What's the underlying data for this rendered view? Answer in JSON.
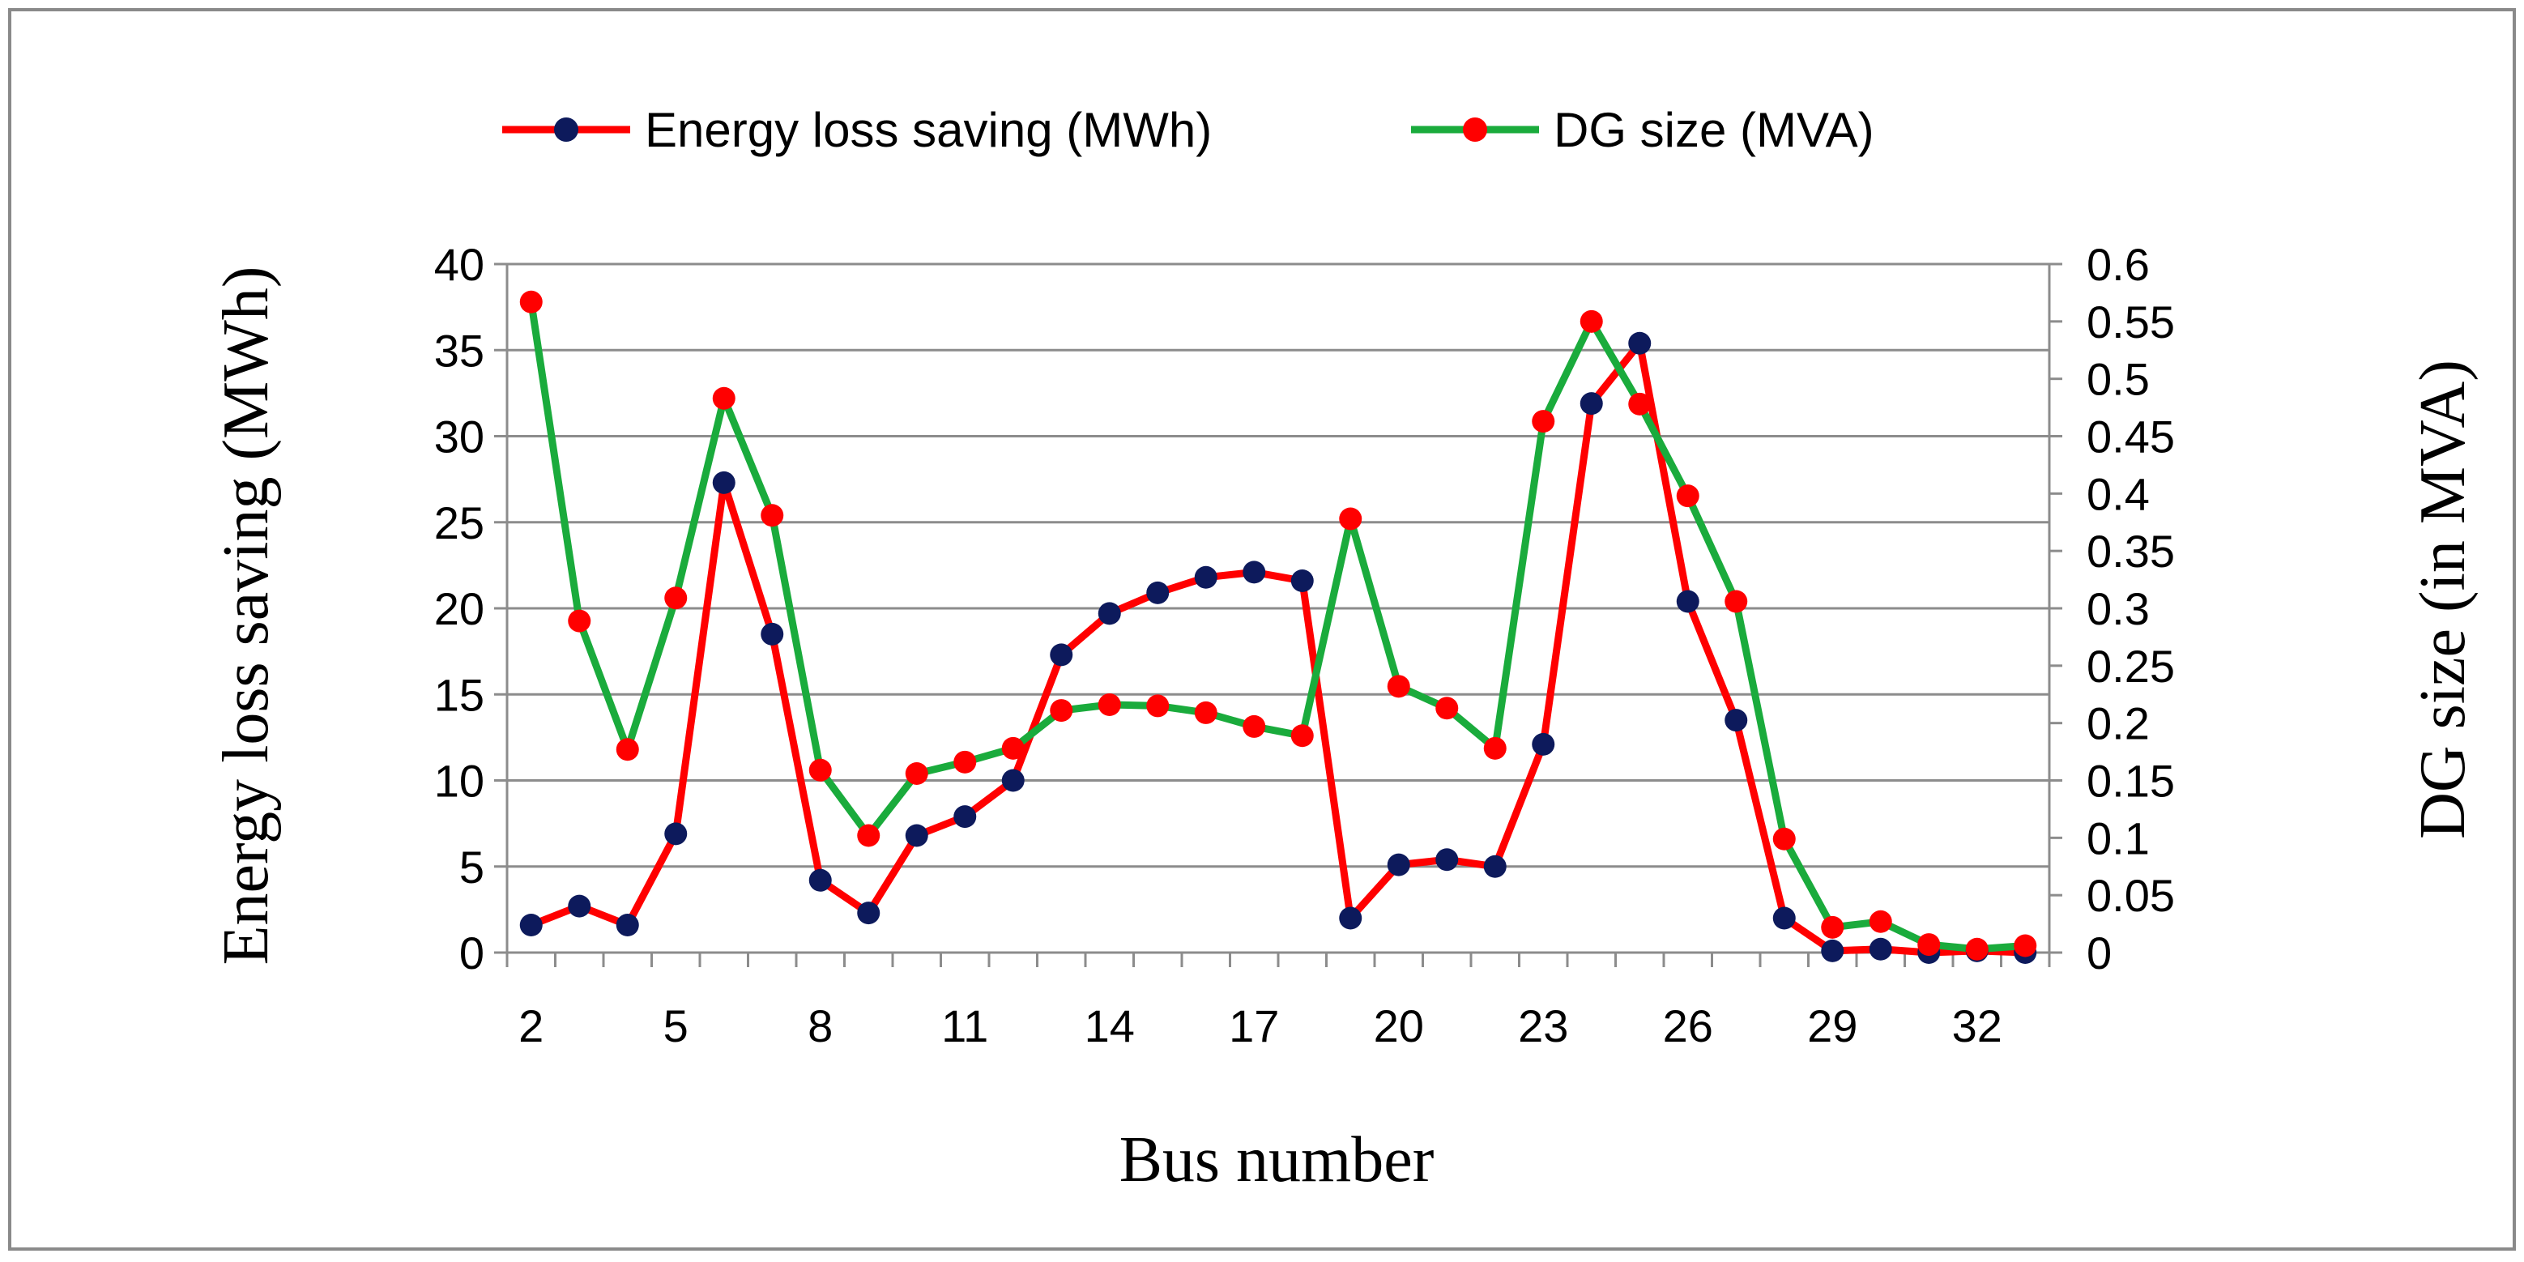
{
  "chart_data": {
    "type": "line",
    "title": "",
    "xlabel": "Bus number",
    "ylabel": "Energy loss saving (MWh)",
    "y2label": "DG size (in MVA)",
    "x": [
      2,
      3,
      4,
      5,
      6,
      7,
      8,
      9,
      10,
      11,
      12,
      13,
      14,
      15,
      16,
      17,
      18,
      19,
      20,
      21,
      22,
      23,
      24,
      25,
      26,
      27,
      28,
      29,
      30,
      31,
      32,
      33
    ],
    "x_tick_labels": [
      "2",
      "5",
      "8",
      "11",
      "14",
      "17",
      "20",
      "23",
      "26",
      "29",
      "32"
    ],
    "y_ticks": [
      "0",
      "5",
      "10",
      "15",
      "20",
      "25",
      "30",
      "35",
      "40"
    ],
    "y2_ticks": [
      "0",
      "0.05",
      "0.1",
      "0.15",
      "0.2",
      "0.25",
      "0.3",
      "0.35",
      "0.4",
      "0.45",
      "0.5",
      "0.55",
      "0.6"
    ],
    "ylim": [
      0,
      40
    ],
    "y2lim": [
      0,
      0.6
    ],
    "grid": true,
    "legend_position": "top",
    "series": [
      {
        "name": "Energy loss saving (MWh)",
        "axis": "left",
        "line_color": "#ff0000",
        "marker_color": "#0d1a5c",
        "values": [
          1.6,
          2.7,
          1.6,
          6.9,
          27.3,
          18.5,
          4.2,
          2.3,
          6.8,
          7.9,
          10.0,
          17.3,
          19.7,
          20.9,
          21.8,
          22.1,
          21.6,
          2.0,
          5.1,
          5.4,
          5.0,
          12.1,
          31.9,
          35.4,
          20.4,
          13.5,
          2.0,
          0.1,
          0.2,
          0.0,
          0.1,
          0.0
        ]
      },
      {
        "name": "DG size (MVA)",
        "axis": "right",
        "line_color": "#1aab3c",
        "marker_color": "#ff0000",
        "values": [
          0.567,
          0.289,
          0.177,
          0.309,
          0.483,
          0.381,
          0.159,
          0.102,
          0.156,
          0.166,
          0.178,
          0.211,
          0.216,
          0.215,
          0.209,
          0.197,
          0.189,
          0.378,
          0.232,
          0.213,
          0.178,
          0.463,
          0.55,
          0.478,
          0.398,
          0.306,
          0.099,
          0.022,
          0.027,
          0.007,
          0.003,
          0.006
        ]
      }
    ]
  }
}
